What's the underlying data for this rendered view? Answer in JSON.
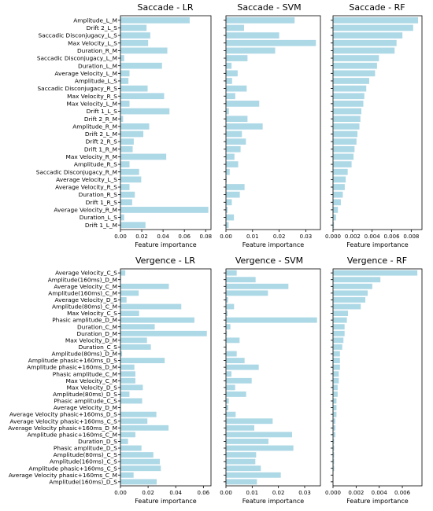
{
  "figure": {
    "panels": [
      {
        "title": "Saccade - LR"
      },
      {
        "title": "Saccade - SVM"
      },
      {
        "title": "Saccade - RF"
      },
      {
        "title": "Vergence - LR"
      },
      {
        "title": "Vergence - SVM"
      },
      {
        "title": "Vergence - RF"
      }
    ]
  },
  "chart_data": [
    {
      "type": "bar",
      "orientation": "horizontal",
      "title": "Saccade - LR",
      "xlabel": "Feature importance",
      "ylabel": "",
      "xlim": [
        0,
        0.085
      ],
      "xticks": [
        0.0,
        0.02,
        0.04,
        0.06,
        0.08
      ],
      "xtick_labels": [
        "0.00",
        "0.02",
        "0.04",
        "0.06",
        "0.08"
      ],
      "color": "#add8e6",
      "categories": [
        "Amplitude_L_M",
        "Drift 2_L_S",
        "Saccadic Disconjugacy_L_S",
        "Max Velocity_L_S",
        "Duration_R_M",
        "Saccadic Disconjugacy_L_M",
        "Duration_L_M",
        "Average Velocity_L_M",
        "Amplitude_L_S",
        "Saccadic Disconjugacy_R_S",
        "Max Velocity_R_S",
        "Max Velocity_L_M",
        "Drift 1_L_S",
        "Drift 2_R_M",
        "Amplitude_R_M",
        "Drift 2_L_M",
        "Drift 2_R_S",
        "Drift 1_R_M",
        "Max Velocity_R_M",
        "Amplitude_R_S",
        "Saccadic Disconjugacy_R_M",
        "Average Velocity_L_S",
        "Average Velocity_R_S",
        "Duration_R_S",
        "Drift 1_R_S",
        "Average Velocity_R_M",
        "Duration_L_S",
        "Drift 1_L_M"
      ],
      "values": [
        0.065,
        0.0245,
        0.028,
        0.026,
        0.044,
        0.0035,
        0.039,
        0.0085,
        0.0075,
        0.0255,
        0.041,
        0.0085,
        0.046,
        0.0025,
        0.027,
        0.0215,
        0.0125,
        0.0115,
        0.043,
        0.0085,
        0.0175,
        0.0195,
        0.0085,
        0.0135,
        0.011,
        0.0825,
        0.0035,
        0.0235
      ]
    },
    {
      "type": "bar",
      "orientation": "horizontal",
      "title": "Saccade - SVM",
      "xlabel": "Feature importance",
      "ylabel": "",
      "xlim": [
        0,
        0.0355
      ],
      "xticks": [
        0.0,
        0.01,
        0.02,
        0.03
      ],
      "xtick_labels": [
        "0.00",
        "0.01",
        "0.02",
        "0.03"
      ],
      "color": "#add8e6",
      "categories": [
        "Amplitude_L_M",
        "Drift 2_L_S",
        "Saccadic Disconjugacy_L_S",
        "Max Velocity_L_S",
        "Duration_R_M",
        "Saccadic Disconjugacy_L_M",
        "Duration_L_M",
        "Average Velocity_L_M",
        "Amplitude_L_S",
        "Saccadic Disconjugacy_R_S",
        "Max Velocity_R_S",
        "Max Velocity_L_M",
        "Drift 1_L_S",
        "Drift 2_R_M",
        "Amplitude_R_M",
        "Drift 2_L_M",
        "Drift 2_R_S",
        "Drift 1_R_M",
        "Max Velocity_R_M",
        "Amplitude_R_S",
        "Saccadic Disconjugacy_R_M",
        "Average Velocity_L_S",
        "Average Velocity_R_S",
        "Duration_R_S",
        "Drift 1_R_S",
        "Average Velocity_R_M",
        "Duration_L_S",
        "Drift 1_L_M"
      ],
      "values": [
        0.0258,
        0.0068,
        0.02,
        0.0338,
        0.0185,
        0.0081,
        0.0021,
        0.0044,
        0.0023,
        0.0078,
        0.0035,
        0.0125,
        0.0011,
        0.0081,
        0.0138,
        0.006,
        0.0075,
        0.0055,
        0.0032,
        0.0046,
        0.0014,
        0.0003,
        0.007,
        0.0052,
        0.0022,
        0.0006,
        0.003,
        0.001
      ]
    },
    {
      "type": "bar",
      "orientation": "horizontal",
      "title": "Saccade - RF",
      "xlabel": "Feature importance",
      "ylabel": "",
      "xlim": [
        0,
        0.0091
      ],
      "xticks": [
        0.0,
        0.002,
        0.004,
        0.006,
        0.008
      ],
      "xtick_labels": [
        "0.000",
        "0.002",
        "0.004",
        "0.006",
        "0.008"
      ],
      "color": "#add8e6",
      "categories": [
        "Amplitude_L_M",
        "Drift 2_L_S",
        "Saccadic Disconjugacy_L_S",
        "Max Velocity_L_S",
        "Duration_R_M",
        "Saccadic Disconjugacy_L_M",
        "Duration_L_M",
        "Average Velocity_L_M",
        "Amplitude_L_S",
        "Saccadic Disconjugacy_R_S",
        "Max Velocity_R_S",
        "Max Velocity_L_M",
        "Drift 1_L_S",
        "Drift 2_R_M",
        "Amplitude_R_M",
        "Drift 2_L_M",
        "Drift 2_R_S",
        "Drift 1_R_M",
        "Max Velocity_R_M",
        "Amplitude_R_S",
        "Saccadic Disconjugacy_R_M",
        "Average Velocity_L_S",
        "Average Velocity_R_S",
        "Duration_R_S",
        "Drift 1_R_S",
        "Average Velocity_R_M",
        "Duration_L_S",
        "Drift 1_L_M"
      ],
      "values": [
        0.0087,
        0.0082,
        0.0071,
        0.0065,
        0.0063,
        0.0047,
        0.0045,
        0.0043,
        0.0037,
        0.0034,
        0.0032,
        0.0031,
        0.0029,
        0.0028,
        0.0027,
        0.0025,
        0.0024,
        0.0022,
        0.0021,
        0.0019,
        0.0015,
        0.0013,
        0.0012,
        0.001,
        0.0008,
        0.0005,
        0.0003,
        0.0001
      ]
    },
    {
      "type": "bar",
      "orientation": "horizontal",
      "title": "Vergence - LR",
      "xlabel": "Feature importance",
      "ylabel": "",
      "xlim": [
        0,
        0.0655
      ],
      "xticks": [
        0.0,
        0.02,
        0.04,
        0.06
      ],
      "xtick_labels": [
        "0.00",
        "0.02",
        "0.04",
        "0.06"
      ],
      "color": "#add8e6",
      "categories": [
        "Average Velocity_C_S",
        "Amplitude(160ms)_D_M",
        "Average Velocity_C_M",
        "Amplitude(160ms)_C_M",
        "Average Velocity_D_S",
        "Amplitude(80ms)_C_M",
        "Max Velocity_C_S",
        "Phasic amplitude_D_M",
        "Duration_C_M",
        "Duration_D_M",
        "Max Velocity_D_M",
        "Duration_C_S",
        "Amplitude(80ms)_D_M",
        "Amplitude phasic+160ms_D_S",
        "Amplitude phasic+160ms_D_M",
        "Phasic amplitude_C_M",
        "Max Velocity_C_M",
        "Max Velocity_D_S",
        "Amplitude(80ms)_D_S",
        "Phasic amplitude_C_S",
        "Average Velocity_D_M",
        "Average Velocity phasic+160ms_D_S",
        "Average Velocity phasic+160ms_C_S",
        "Average Velocity phasic+160ms_D_M",
        "Amplitude phasic+160ms_C_M",
        "Duration_D_S",
        "Phasic amplitude_D_S",
        "Amplitude(80ms)_C_S",
        "Amplitude(160ms)_C_S",
        "Amplitude phasic+160ms_C_S",
        "Average Velocity phasic+160ms_C_M",
        "Amplitude(160ms)_D_S"
      ],
      "values": [
        0.0035,
        0.0004,
        0.035,
        0.0132,
        0.0044,
        0.044,
        0.0135,
        0.0535,
        0.0248,
        0.0625,
        0.0192,
        0.022,
        0.0012,
        0.032,
        0.0101,
        0.0108,
        0.0108,
        0.0162,
        0.0065,
        0.0157,
        0.0003,
        0.026,
        0.0195,
        0.0348,
        0.0108,
        0.0055,
        0.0152,
        0.0238,
        0.0285,
        0.0292,
        0.0095,
        0.0262
      ]
    },
    {
      "type": "bar",
      "orientation": "horizontal",
      "title": "Vergence - SVM",
      "xlabel": "Feature importance",
      "ylabel": "",
      "xlim": [
        0,
        0.036
      ],
      "xticks": [
        0.0,
        0.01,
        0.02,
        0.03
      ],
      "xtick_labels": [
        "0.00",
        "0.01",
        "0.02",
        "0.03"
      ],
      "color": "#add8e6",
      "categories": [
        "Average Velocity_C_S",
        "Amplitude(160ms)_D_M",
        "Average Velocity_C_M",
        "Amplitude(160ms)_C_M",
        "Average Velocity_D_S",
        "Amplitude(80ms)_C_M",
        "Max Velocity_C_S",
        "Phasic amplitude_D_M",
        "Duration_C_M",
        "Duration_D_M",
        "Max Velocity_D_M",
        "Duration_C_S",
        "Amplitude(80ms)_D_M",
        "Amplitude phasic+160ms_D_S",
        "Amplitude phasic+160ms_D_M",
        "Phasic amplitude_C_M",
        "Max Velocity_C_M",
        "Max Velocity_D_S",
        "Amplitude(80ms)_D_S",
        "Phasic amplitude_C_S",
        "Average Velocity_D_M",
        "Average Velocity phasic+160ms_D_S",
        "Average Velocity phasic+160ms_C_S",
        "Average Velocity phasic+160ms_D_M",
        "Amplitude phasic+160ms_C_M",
        "Duration_D_S",
        "Phasic amplitude_D_S",
        "Amplitude(80ms)_C_S",
        "Amplitude(160ms)_C_S",
        "Amplitude phasic+160ms_C_S",
        "Average Velocity phasic+160ms_C_M",
        "Amplitude(160ms)_D_S"
      ],
      "values": [
        0.0041,
        0.0113,
        0.0238,
        0.016,
        0.0008,
        0.0031,
        0.0006,
        0.0347,
        0.0017,
        0.0004,
        0.0052,
        0.0003,
        0.0041,
        0.0071,
        0.0125,
        0.0021,
        0.0098,
        0.0035,
        0.0077,
        0.0011,
        0.0009,
        0.0037,
        0.0178,
        0.0108,
        0.0252,
        0.0162,
        0.0257,
        0.0115,
        0.0112,
        0.0133,
        0.0209,
        0.0118
      ]
    },
    {
      "type": "bar",
      "orientation": "horizontal",
      "title": "Vergence - RF",
      "xlabel": "Feature importance",
      "ylabel": "",
      "xlim": [
        0,
        0.0077
      ],
      "xticks": [
        0.0,
        0.002,
        0.004,
        0.006
      ],
      "xtick_labels": [
        "0.000",
        "0.002",
        "0.004",
        "0.006"
      ],
      "color": "#add8e6",
      "categories": [
        "Average Velocity_C_S",
        "Amplitude(160ms)_D_M",
        "Average Velocity_C_M",
        "Amplitude(160ms)_C_M",
        "Average Velocity_D_S",
        "Amplitude(80ms)_C_M",
        "Max Velocity_C_S",
        "Phasic amplitude_D_M",
        "Duration_C_M",
        "Duration_D_M",
        "Max Velocity_D_M",
        "Duration_C_S",
        "Amplitude(80ms)_D_M",
        "Amplitude phasic+160ms_D_S",
        "Amplitude phasic+160ms_D_M",
        "Phasic amplitude_C_M",
        "Max Velocity_C_M",
        "Max Velocity_D_S",
        "Amplitude(80ms)_D_S",
        "Phasic amplitude_C_S",
        "Average Velocity_D_M",
        "Average Velocity phasic+160ms_D_S",
        "Average Velocity phasic+160ms_C_S",
        "Average Velocity phasic+160ms_D_M",
        "Amplitude phasic+160ms_C_M",
        "Duration_D_S",
        "Phasic amplitude_D_S",
        "Amplitude(80ms)_C_S",
        "Amplitude(160ms)_C_S",
        "Amplitude phasic+160ms_C_S",
        "Average Velocity phasic+160ms_C_M",
        "Amplitude(160ms)_D_S"
      ],
      "values": [
        0.0073,
        0.0041,
        0.0034,
        0.003,
        0.0028,
        0.0024,
        0.0013,
        0.0012,
        0.001,
        0.001,
        0.0009,
        0.0008,
        0.0006,
        0.0006,
        0.0006,
        0.0005,
        0.0005,
        0.0004,
        0.0004,
        0.0003,
        0.0003,
        0.0003,
        0.0002,
        0.0002,
        0.0002,
        0.0001,
        0.0001,
        0.0001,
        0.0001,
        0.0001,
        0.0,
        0.0
      ]
    }
  ]
}
